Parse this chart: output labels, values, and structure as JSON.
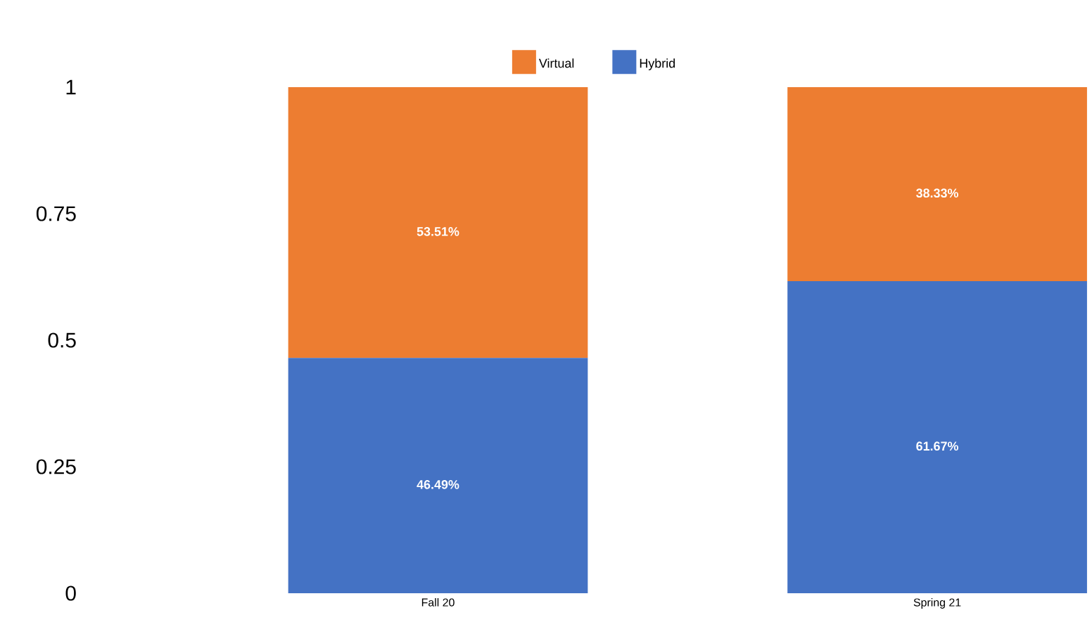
{
  "chart_data": {
    "type": "bar",
    "stacked": true,
    "categories": [
      "Fall 20",
      "Spring 21"
    ],
    "series": [
      {
        "name": "Hybrid",
        "color": "#4472c4",
        "values": [
          0.4649,
          0.6167
        ],
        "value_labels": [
          "46.49%",
          "61.67%"
        ]
      },
      {
        "name": "Virtual",
        "color": "#ed7d31",
        "values": [
          0.5351,
          0.3833
        ],
        "value_labels": [
          "53.51%",
          "38.33%"
        ]
      }
    ],
    "ylim": [
      0,
      1
    ],
    "yticks": [
      0,
      0.25,
      0.5,
      0.75,
      1
    ],
    "grid": false,
    "legend": "top"
  }
}
